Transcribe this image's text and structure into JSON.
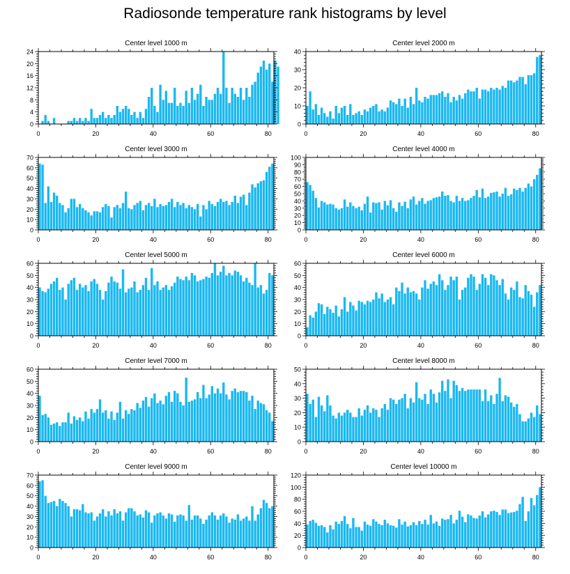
{
  "title": "Radiosonde temperature rank histograms by level",
  "colors": {
    "bar": "#1ab8f0",
    "axis": "#000000"
  },
  "chart_data": [
    {
      "type": "bar",
      "title": "Center level 1000 m",
      "ylim": [
        0,
        24
      ],
      "yticks": [
        0,
        4,
        8,
        12,
        16,
        20,
        24
      ],
      "xlim": [
        0,
        82
      ],
      "xticks": [
        0,
        20,
        40,
        60,
        80
      ],
      "values": [
        0,
        1,
        3,
        1,
        0,
        2,
        0,
        0,
        0,
        0,
        1,
        1,
        2,
        1,
        2,
        1,
        2,
        1,
        5,
        2,
        2,
        3,
        4,
        2,
        3,
        2,
        3,
        6,
        4,
        5,
        6,
        5,
        3,
        4,
        2,
        4,
        2,
        5,
        9,
        12,
        6,
        4,
        13,
        8,
        11,
        7,
        7,
        12,
        6,
        7,
        6,
        11,
        7,
        12,
        8,
        10,
        13,
        6,
        9,
        8,
        8,
        10,
        12,
        10,
        24,
        12,
        7,
        12,
        10,
        9,
        12,
        8,
        12,
        9,
        13,
        14,
        17,
        19,
        21,
        18,
        20,
        14,
        21,
        19
      ]
    },
    {
      "type": "bar",
      "title": "Center level 2000 m",
      "ylim": [
        0,
        40
      ],
      "yticks": [
        0,
        10,
        20,
        30,
        40
      ],
      "xlim": [
        0,
        82
      ],
      "xticks": [
        0,
        20,
        40,
        60,
        80
      ],
      "values": [
        10,
        18,
        8,
        11,
        5,
        9,
        6,
        4,
        7,
        3,
        10,
        6,
        9,
        10,
        5,
        11,
        5,
        6,
        7,
        5,
        8,
        7,
        9,
        10,
        11,
        7,
        8,
        7,
        9,
        13,
        12,
        11,
        14,
        10,
        14,
        9,
        15,
        11,
        20,
        13,
        12,
        15,
        14,
        16,
        16,
        16,
        17,
        18,
        15,
        17,
        12,
        15,
        13,
        16,
        14,
        17,
        19,
        18,
        18,
        20,
        14,
        19,
        19,
        18,
        20,
        19,
        20,
        19,
        21,
        20,
        24,
        24,
        23,
        24,
        26,
        26,
        22,
        27,
        27,
        28,
        37,
        38
      ]
    },
    {
      "type": "bar",
      "title": "Center level 3000 m",
      "ylim": [
        0,
        70
      ],
      "yticks": [
        0,
        10,
        20,
        30,
        40,
        50,
        60,
        70
      ],
      "xlim": [
        0,
        82
      ],
      "xticks": [
        0,
        20,
        40,
        60,
        80
      ],
      "values": [
        64,
        63,
        26,
        42,
        27,
        36,
        33,
        26,
        24,
        17,
        21,
        30,
        30,
        22,
        25,
        21,
        19,
        17,
        14,
        18,
        18,
        17,
        22,
        25,
        23,
        12,
        22,
        24,
        21,
        26,
        37,
        21,
        20,
        24,
        26,
        28,
        19,
        24,
        26,
        23,
        30,
        22,
        25,
        23,
        24,
        27,
        30,
        22,
        27,
        24,
        26,
        21,
        24,
        22,
        20,
        25,
        13,
        24,
        20,
        28,
        25,
        23,
        27,
        30,
        27,
        28,
        24,
        27,
        33,
        26,
        32,
        34,
        24,
        36,
        44,
        41,
        45,
        47,
        48,
        56,
        61,
        64
      ]
    },
    {
      "type": "bar",
      "title": "Center level 4000 m",
      "ylim": [
        0,
        100
      ],
      "yticks": [
        0,
        10,
        20,
        30,
        40,
        50,
        60,
        70,
        80,
        90,
        100
      ],
      "xlim": [
        0,
        82
      ],
      "xticks": [
        0,
        20,
        40,
        60,
        80
      ],
      "values": [
        66,
        62,
        54,
        44,
        31,
        40,
        38,
        35,
        36,
        35,
        30,
        28,
        30,
        42,
        32,
        38,
        33,
        30,
        32,
        27,
        36,
        46,
        24,
        38,
        37,
        38,
        28,
        40,
        34,
        41,
        30,
        25,
        38,
        33,
        39,
        30,
        42,
        46,
        35,
        40,
        44,
        36,
        40,
        41,
        44,
        45,
        46,
        53,
        47,
        48,
        40,
        38,
        47,
        40,
        44,
        40,
        41,
        44,
        47,
        55,
        45,
        57,
        44,
        46,
        51,
        52,
        53,
        46,
        50,
        58,
        47,
        49,
        57,
        55,
        58,
        53,
        58,
        64,
        60,
        70,
        76,
        85
      ]
    },
    {
      "type": "bar",
      "title": "Center level 5000 m",
      "ylim": [
        0,
        60
      ],
      "yticks": [
        0,
        10,
        20,
        30,
        40,
        50,
        60
      ],
      "xlim": [
        0,
        82
      ],
      "xticks": [
        0,
        20,
        40,
        60,
        80
      ],
      "values": [
        40,
        37,
        36,
        39,
        43,
        45,
        48,
        38,
        40,
        30,
        43,
        46,
        48,
        38,
        43,
        40,
        42,
        37,
        45,
        47,
        43,
        38,
        30,
        37,
        44,
        49,
        45,
        44,
        39,
        55,
        36,
        39,
        40,
        45,
        36,
        38,
        42,
        48,
        38,
        56,
        42,
        45,
        38,
        40,
        42,
        38,
        41,
        44,
        49,
        47,
        46,
        49,
        46,
        52,
        50,
        45,
        46,
        47,
        49,
        48,
        52,
        60,
        50,
        53,
        58,
        50,
        52,
        50,
        54,
        53,
        50,
        45,
        48,
        44,
        42,
        60,
        40,
        42,
        35,
        38,
        52,
        50
      ]
    },
    {
      "type": "bar",
      "title": "Center level 6000 m",
      "ylim": [
        0,
        60
      ],
      "yticks": [
        0,
        10,
        20,
        30,
        40,
        50,
        60
      ],
      "xlim": [
        0,
        82
      ],
      "xticks": [
        0,
        20,
        40,
        60,
        80
      ],
      "values": [
        7,
        17,
        15,
        20,
        27,
        26,
        18,
        24,
        22,
        19,
        25,
        16,
        22,
        32,
        20,
        28,
        25,
        21,
        29,
        28,
        26,
        29,
        28,
        30,
        36,
        31,
        35,
        28,
        30,
        32,
        26,
        40,
        37,
        44,
        35,
        40,
        36,
        37,
        35,
        30,
        40,
        46,
        39,
        43,
        45,
        42,
        51,
        46,
        38,
        42,
        49,
        46,
        49,
        30,
        38,
        40,
        48,
        51,
        49,
        38,
        43,
        51,
        48,
        42,
        51,
        50,
        46,
        42,
        47,
        35,
        30,
        40,
        38,
        45,
        32,
        31,
        42,
        37,
        34,
        24,
        36,
        42
      ]
    },
    {
      "type": "bar",
      "title": "Center level 7000 m",
      "ylim": [
        0,
        60
      ],
      "yticks": [
        0,
        10,
        20,
        30,
        40,
        50,
        60
      ],
      "xlim": [
        0,
        82
      ],
      "xticks": [
        0,
        20,
        40,
        60,
        80
      ],
      "values": [
        38,
        22,
        23,
        20,
        14,
        15,
        16,
        13,
        16,
        16,
        24,
        15,
        21,
        18,
        20,
        17,
        25,
        19,
        27,
        24,
        27,
        35,
        24,
        26,
        19,
        25,
        18,
        24,
        33,
        19,
        26,
        23,
        27,
        26,
        32,
        28,
        34,
        37,
        29,
        36,
        40,
        32,
        34,
        31,
        38,
        41,
        33,
        42,
        40,
        33,
        30,
        53,
        33,
        34,
        35,
        41,
        36,
        47,
        36,
        39,
        46,
        40,
        44,
        40,
        49,
        39,
        35,
        42,
        44,
        41,
        42,
        42,
        41,
        34,
        38,
        27,
        34,
        32,
        31,
        26,
        24,
        17
      ]
    },
    {
      "type": "bar",
      "title": "Center level 8000 m",
      "ylim": [
        0,
        50
      ],
      "yticks": [
        0,
        10,
        20,
        30,
        40,
        50
      ],
      "xlim": [
        0,
        82
      ],
      "xticks": [
        0,
        20,
        40,
        60,
        80
      ],
      "values": [
        33,
        26,
        29,
        17,
        31,
        25,
        21,
        32,
        25,
        18,
        16,
        20,
        18,
        20,
        22,
        20,
        17,
        17,
        23,
        18,
        22,
        25,
        20,
        23,
        22,
        17,
        23,
        26,
        22,
        30,
        29,
        26,
        29,
        30,
        33,
        23,
        30,
        27,
        41,
        30,
        29,
        33,
        26,
        36,
        33,
        27,
        34,
        42,
        35,
        43,
        30,
        42,
        39,
        35,
        37,
        35,
        36,
        36,
        36,
        36,
        36,
        28,
        36,
        28,
        32,
        26,
        33,
        44,
        28,
        32,
        31,
        27,
        24,
        26,
        19,
        14,
        14,
        16,
        20,
        17,
        25,
        19
      ]
    },
    {
      "type": "bar",
      "title": "Center level 9000 m",
      "ylim": [
        0,
        70
      ],
      "yticks": [
        0,
        10,
        20,
        30,
        40,
        50,
        60,
        70
      ],
      "xlim": [
        0,
        82
      ],
      "xticks": [
        0,
        20,
        40,
        60,
        80
      ],
      "values": [
        64,
        65,
        50,
        43,
        44,
        45,
        40,
        47,
        45,
        43,
        40,
        30,
        37,
        37,
        36,
        42,
        34,
        33,
        34,
        26,
        30,
        33,
        37,
        30,
        35,
        31,
        37,
        33,
        35,
        26,
        34,
        38,
        38,
        35,
        31,
        32,
        29,
        36,
        34,
        24,
        31,
        33,
        34,
        31,
        28,
        33,
        32,
        25,
        31,
        32,
        31,
        26,
        41,
        27,
        31,
        31,
        28,
        23,
        27,
        31,
        34,
        31,
        27,
        31,
        33,
        30,
        24,
        28,
        27,
        32,
        26,
        28,
        30,
        26,
        40,
        26,
        32,
        38,
        46,
        43,
        38,
        40
      ]
    },
    {
      "type": "bar",
      "title": "Center level 10000 m",
      "ylim": [
        0,
        120
      ],
      "yticks": [
        0,
        20,
        40,
        60,
        80,
        100,
        120
      ],
      "xlim": [
        0,
        82
      ],
      "xticks": [
        0,
        20,
        40,
        60,
        80
      ],
      "values": [
        38,
        44,
        46,
        41,
        36,
        37,
        34,
        25,
        37,
        30,
        43,
        39,
        44,
        52,
        39,
        32,
        49,
        34,
        34,
        28,
        43,
        38,
        36,
        47,
        43,
        39,
        37,
        46,
        40,
        37,
        36,
        33,
        47,
        38,
        43,
        35,
        37,
        42,
        37,
        44,
        39,
        46,
        38,
        54,
        40,
        43,
        36,
        48,
        46,
        47,
        54,
        40,
        46,
        61,
        51,
        42,
        55,
        53,
        49,
        48,
        53,
        60,
        50,
        55,
        60,
        61,
        59,
        54,
        63,
        63,
        57,
        58,
        59,
        61,
        72,
        84,
        44,
        60,
        82,
        70,
        87,
        100
      ]
    }
  ]
}
